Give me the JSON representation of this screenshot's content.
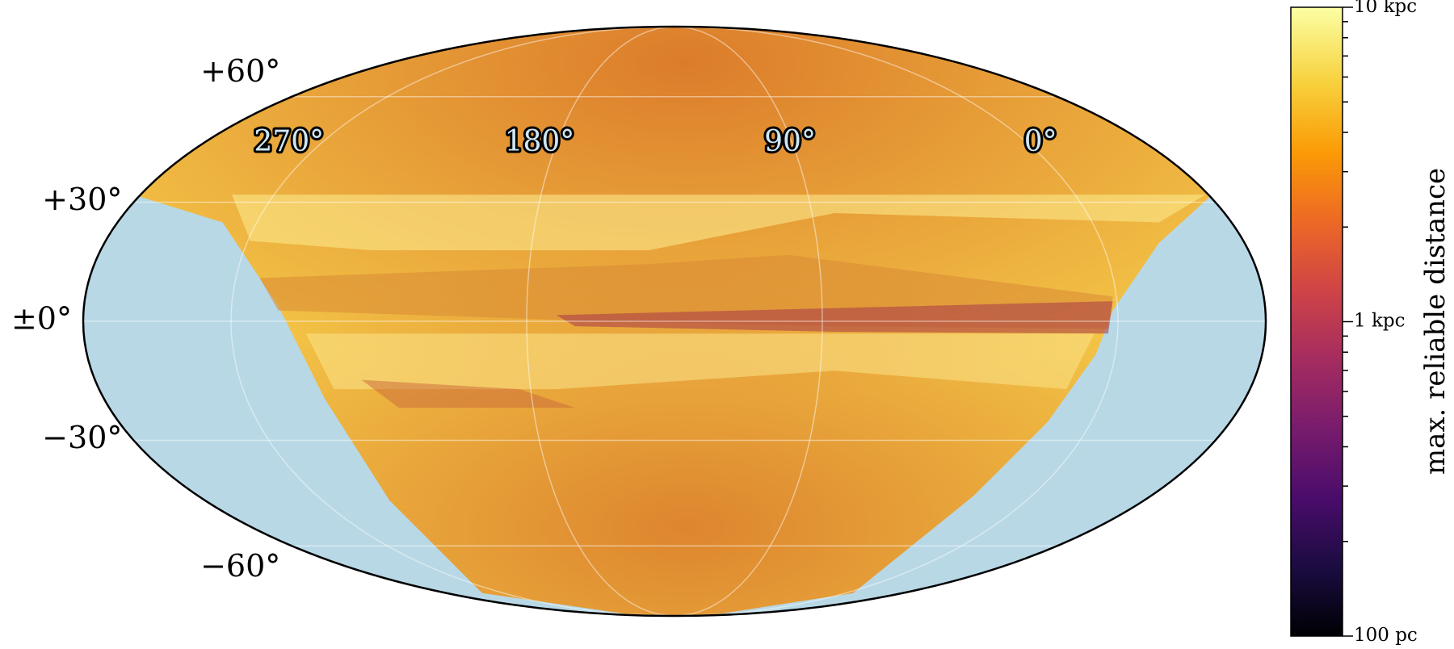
{
  "map": {
    "graticule": {
      "latitudes": [
        {
          "value": 60,
          "label": "+60°"
        },
        {
          "value": 30,
          "label": "+30°"
        },
        {
          "value": 0,
          "label": "±0°"
        },
        {
          "value": -30,
          "label": "−30°"
        },
        {
          "value": -60,
          "label": "−60°"
        }
      ],
      "longitudes": [
        {
          "value": 270,
          "label": "270°"
        },
        {
          "value": 180,
          "label": "180°"
        },
        {
          "value": 90,
          "label": "90°"
        },
        {
          "value": 0,
          "label": "0°"
        }
      ]
    },
    "colorbar": {
      "label": "max. reliable distance",
      "scale": "log",
      "lim": [
        100,
        10000
      ],
      "ticks": [
        {
          "value": 10000,
          "label": "10 kpc"
        },
        {
          "value": 1000,
          "label": "1 kpc"
        },
        {
          "value": 100,
          "label": "100 pc"
        }
      ],
      "minor_ticks": [
        200,
        300,
        400,
        500,
        600,
        700,
        800,
        900,
        2000,
        3000,
        4000,
        5000,
        6000,
        7000,
        8000,
        9000
      ]
    }
  }
}
